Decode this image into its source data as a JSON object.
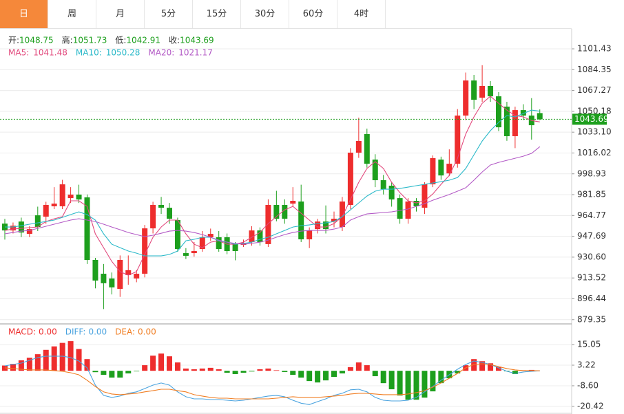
{
  "tabs": [
    {
      "label": "日",
      "active": true
    },
    {
      "label": "周",
      "active": false
    },
    {
      "label": "月",
      "active": false
    },
    {
      "label": "5分",
      "active": false
    },
    {
      "label": "15分",
      "active": false
    },
    {
      "label": "30分",
      "active": false
    },
    {
      "label": "60分",
      "active": false
    },
    {
      "label": "4时",
      "active": false
    }
  ],
  "chart_data": [
    {
      "type": "candlestick",
      "ohlc_labels": [
        "开:",
        "高:",
        "低:",
        "收:"
      ],
      "up_color": "#ee2d2d",
      "down_color": "#1d9f1d",
      "grid": true,
      "ylim": [
        876.4,
        1117.8
      ],
      "yticks": [
        1101.43,
        1084.35,
        1067.27,
        1050.18,
        {
          "value": 1033.1,
          "label": "1033.10"
        },
        1016.02,
        998.93,
        981.85,
        964.77,
        947.69,
        {
          "value": 930.6,
          "label": "930.60"
        },
        913.52,
        896.44,
        879.35
      ],
      "open": [
        958.1,
        952.5,
        959.8,
        949.7,
        964.9,
        963.8,
        972.3,
        972.3,
        979.0,
        981.9,
        979.6,
        928.3,
        917.0,
        913.1,
        904.6,
        915.9,
        913.1,
        917.0,
        954.2,
        973.4,
        971.1,
        961.0,
        933.9,
        933.9,
        937.3,
        946.9,
        946.9,
        946.9,
        941.3,
        940.7,
        942.9,
        952.5,
        941.3,
        973.4,
        973.4,
        974.5,
        976.2,
        945.2,
        953.6,
        959.8,
        959.8,
        955.3,
        973.4,
        1016.3,
        1031.5,
        1010.6,
        993.7,
        989.2,
        979.0,
        962.1,
        976.8,
        971.1,
        990.3,
        1010.6,
        999.3,
        1007.2,
        1046.7,
        1075.5,
        1061.4,
        1071.0,
        1062.5,
        1054.0,
        1029.8,
        1051.2,
        1046.7,
        1048.75
      ],
      "high": [
        962,
        959,
        963,
        956,
        972,
        976,
        988,
        994,
        988,
        990,
        982,
        930,
        925,
        918,
        932,
        932,
        920,
        957,
        976,
        980,
        975,
        963,
        938,
        943,
        952,
        954,
        952,
        950,
        943,
        945,
        956,
        955,
        978,
        985,
        978,
        988,
        990,
        955,
        962,
        973,
        968,
        980,
        1020,
        1045,
        1036,
        1015,
        998,
        992,
        982,
        979,
        979,
        992,
        1014,
        1013,
        1019,
        1052,
        1082,
        1080,
        1088,
        1075,
        1066,
        1058,
        1054,
        1056,
        1061,
        1051.73
      ],
      "low": [
        945,
        950,
        947,
        947,
        952,
        958,
        970,
        970,
        975,
        975,
        925,
        905,
        888,
        900,
        898,
        908,
        910,
        914,
        950,
        966,
        958,
        935,
        929,
        931,
        935,
        944,
        935,
        933,
        928,
        939,
        940,
        940,
        939,
        960,
        958,
        972,
        943,
        938,
        950,
        950,
        955,
        952,
        970,
        1012,
        1004,
        988,
        982,
        972,
        958,
        958,
        968,
        966,
        988,
        994,
        997,
        1004,
        1043,
        1052,
        1058,
        1058,
        1034,
        1026,
        1020,
        1043,
        1027,
        1042.91
      ],
      "close": [
        952.5,
        956.4,
        950.8,
        953.6,
        955.3,
        973.4,
        974.5,
        990.3,
        981.9,
        977.9,
        928.3,
        911.4,
        909.2,
        905.8,
        928.3,
        919.9,
        917.0,
        954.2,
        973.4,
        971.1,
        962.1,
        937.3,
        931.7,
        935.6,
        946.9,
        949.7,
        937.3,
        935.6,
        935.6,
        942.4,
        952.5,
        942.9,
        973.4,
        962.1,
        962.1,
        976.8,
        945.2,
        952.5,
        959.8,
        953.6,
        962.1,
        976.2,
        1016.3,
        1025.9,
        1007.2,
        993.7,
        986.4,
        977.9,
        962.1,
        976.2,
        972.3,
        990.3,
        1011.8,
        997.6,
        1007.2,
        1046.7,
        1075.5,
        1059.7,
        1071.0,
        1062.5,
        1037.1,
        1029.8,
        1051.2,
        1046.7,
        1038.8,
        1043.69
      ],
      "series": [
        {
          "name": "MA5:",
          "color": "#e2487c",
          "values": [
            952.5,
            953.6,
            954.2,
            954.8,
            955.3,
            959.8,
            962.1,
            963.8,
            976.8,
            976.8,
            972.2,
            949.7,
            938.4,
            927.1,
            918.7,
            915.8,
            918.7,
            932.8,
            946.9,
            955.3,
            961.0,
            961.0,
            949.7,
            941.2,
            938.4,
            942.9,
            944.0,
            941.2,
            941.2,
            942.9,
            946.9,
            950.8,
            958.1,
            963.8,
            969.4,
            972.2,
            966.6,
            961.0,
            955.3,
            955.3,
            958.1,
            963.8,
            977.9,
            992.0,
            1003.3,
            1008.9,
            1003.3,
            992.0,
            983.5,
            976.8,
            975.1,
            976.8,
            982.4,
            990.3,
            997.6,
            1011.7,
            1031.5,
            1045.6,
            1056.8,
            1062.5,
            1056.8,
            1051.2,
            1046.7,
            1045.6,
            1042.7,
            1041.48
          ]
        },
        {
          "name": "MA10:",
          "color": "#2ab9c9",
          "values": [
            955.3,
            955.3,
            956.4,
            957.6,
            958.7,
            959.8,
            961.0,
            963.2,
            965.5,
            967.7,
            965.5,
            961.0,
            949.7,
            941.2,
            938.4,
            935.6,
            933.9,
            931.6,
            931.6,
            931.6,
            932.8,
            935.6,
            944.0,
            945.2,
            946.9,
            946.9,
            944.0,
            942.9,
            941.2,
            941.8,
            942.9,
            945.2,
            946.9,
            949.7,
            952.5,
            955.3,
            956.4,
            957.0,
            958.1,
            958.7,
            959.8,
            963.8,
            969.4,
            975.1,
            980.7,
            984.7,
            986.3,
            986.3,
            986.9,
            988.0,
            989.2,
            990.3,
            991.4,
            992.5,
            993.7,
            995.9,
            1003.3,
            1014.5,
            1025.8,
            1034.3,
            1041.1,
            1046.7,
            1045.6,
            1048.4,
            1051.2,
            1050.28
          ]
        },
        {
          "name": "MA20:",
          "color": "#b35ac6",
          "values": [
            949.7,
            950.8,
            951.9,
            952.5,
            954.2,
            955.9,
            957.6,
            959.3,
            961.0,
            962.1,
            961.0,
            959.8,
            957.6,
            955.3,
            953.1,
            950.8,
            949.1,
            947.4,
            948.6,
            950.2,
            951.9,
            952.5,
            951.9,
            950.8,
            949.1,
            946.9,
            944.6,
            942.9,
            941.8,
            941.2,
            941.8,
            942.9,
            944.6,
            946.9,
            949.1,
            950.8,
            951.9,
            952.5,
            952.5,
            952.5,
            953.6,
            955.3,
            961.0,
            963.8,
            966.0,
            966.6,
            967.2,
            967.7,
            968.9,
            970.0,
            972.2,
            974.5,
            977.3,
            979.6,
            981.9,
            984.7,
            987.5,
            993.7,
            1000.4,
            1006.1,
            1008.3,
            1010.0,
            1011.7,
            1013.4,
            1015.7,
            1021.17
          ]
        }
      ]
    },
    {
      "type": "macd",
      "grid": true,
      "ylim": [
        -24.0,
        26.5
      ],
      "yticks": [
        15.05,
        3.22,
        {
          "value": -8.6,
          "label": "-8.60"
        },
        -20.42
      ],
      "series": [
        {
          "name": "MACD:",
          "kind": "histogram",
          "color": "#ee2d2d",
          "legend_value": "0.00",
          "values": [
            3,
            4,
            6,
            7.5,
            9.5,
            12,
            14,
            16,
            17,
            12.5,
            6.7,
            -0.8,
            -2.3,
            -3.9,
            -3.9,
            -1.5,
            -0.3,
            3.2,
            8.7,
            9.9,
            8.3,
            4.8,
            1.3,
            0.9,
            1.3,
            1.7,
            0.9,
            -1.1,
            -1.9,
            -1.1,
            -0.4,
            0.9,
            1.3,
            0.3,
            -0.7,
            -2.3,
            -3.9,
            -5.9,
            -6.7,
            -5.5,
            -3.5,
            -1.5,
            2.1,
            4.8,
            3.2,
            -3.1,
            -7.1,
            -10.6,
            -14.2,
            -16.6,
            -16.6,
            -15.4,
            -11.8,
            -7.1,
            -4.3,
            -1.5,
            3.2,
            6.7,
            5.5,
            4.3,
            2.4,
            -0.3,
            -1.9,
            0.3,
            0.5,
            0
          ]
        },
        {
          "name": "DIFF:",
          "kind": "line",
          "color": "#4aa3df",
          "legend_value": "0.00",
          "values": [
            2.8,
            3.6,
            4.4,
            6.0,
            7.6,
            8.4,
            8.4,
            8.4,
            7.6,
            5.6,
            1.7,
            -8.2,
            -14.1,
            -15.3,
            -14.5,
            -12.9,
            -12.1,
            -10.2,
            -8.2,
            -7.0,
            -8.2,
            -12.1,
            -14.9,
            -16.1,
            -16.1,
            -16.5,
            -16.5,
            -16.9,
            -17.3,
            -16.9,
            -16.1,
            -15.3,
            -14.5,
            -14.1,
            -14.9,
            -16.9,
            -18.6,
            -19.4,
            -17.7,
            -16.1,
            -14.1,
            -12.9,
            -10.9,
            -10.6,
            -12.1,
            -15.3,
            -16.9,
            -17.3,
            -17.3,
            -16.9,
            -15.3,
            -12.1,
            -9.0,
            -5.4,
            -2.3,
            0.9,
            3.6,
            5.6,
            4.8,
            3.6,
            1.7,
            -0.3,
            -1.5,
            -0.7,
            -0.3,
            0
          ]
        },
        {
          "name": "DEA:",
          "kind": "line",
          "color": "#f07d22",
          "legend_value": "0.00",
          "values": [
            1.7,
            1.3,
            0.9,
            0.5,
            0.5,
            0.5,
            0.1,
            -0.3,
            -1.1,
            -2.3,
            -5.4,
            -9.0,
            -12.1,
            -13.3,
            -13.7,
            -13.3,
            -12.9,
            -12.1,
            -11.4,
            -10.6,
            -10.6,
            -11.4,
            -12.1,
            -13.7,
            -14.5,
            -15.3,
            -15.7,
            -15.7,
            -16.1,
            -16.1,
            -16.1,
            -16.1,
            -16.1,
            -15.7,
            -15.3,
            -14.9,
            -15.3,
            -15.3,
            -15.3,
            -14.9,
            -14.5,
            -14.1,
            -13.3,
            -12.9,
            -12.9,
            -13.3,
            -13.7,
            -13.7,
            -13.7,
            -13.3,
            -12.5,
            -11.4,
            -9.4,
            -7.0,
            -4.3,
            -1.5,
            1.7,
            3.6,
            4.0,
            3.6,
            2.4,
            1.3,
            0.5,
            0.1,
            0.1,
            0
          ]
        }
      ]
    }
  ]
}
